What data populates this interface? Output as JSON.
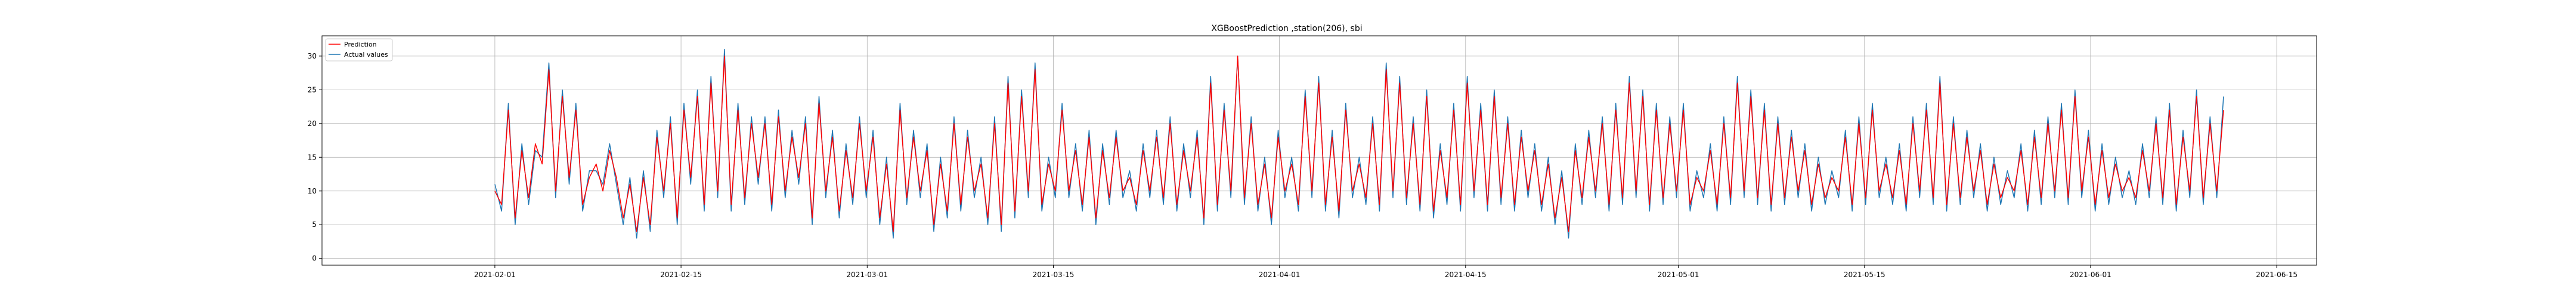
{
  "chart_data": {
    "type": "line",
    "title": "XGBoostPrediction ,station(206), sbi",
    "xlabel": "",
    "ylabel": "",
    "x_range": [
      "2021-01-19",
      "2021-06-18"
    ],
    "ylim": [
      -1,
      33
    ],
    "x_ticks": [
      "2021-02-01",
      "2021-02-15",
      "2021-03-01",
      "2021-03-15",
      "2021-04-01",
      "2021-04-15",
      "2021-05-01",
      "2021-05-15",
      "2021-06-01",
      "2021-06-15"
    ],
    "y_ticks": [
      0,
      5,
      10,
      15,
      20,
      25,
      30
    ],
    "grid": true,
    "legend_position": "upper-left",
    "data_start": "2021-02-01",
    "data_end": "2021-06-11",
    "series": [
      {
        "name": "Prediction",
        "color": "#ff0000",
        "daily_values": [
          10,
          8,
          22,
          6,
          16,
          9,
          17,
          14,
          28,
          10,
          24,
          12,
          22,
          8,
          12,
          14,
          10,
          16,
          12,
          6,
          11,
          4,
          12,
          5,
          18,
          10,
          20,
          6,
          22,
          12,
          24,
          8,
          26,
          10,
          30,
          8,
          22,
          9,
          20,
          12,
          20,
          8,
          21,
          10,
          18,
          12,
          20,
          6,
          23,
          10,
          18,
          7,
          16,
          9,
          20,
          10,
          18,
          6,
          14,
          4,
          22,
          9,
          18,
          10,
          16,
          5,
          14,
          7,
          20,
          8,
          18,
          10,
          14,
          6,
          20,
          5,
          26,
          7,
          24,
          10,
          28,
          8,
          14,
          10,
          22,
          10,
          16,
          8,
          18,
          6,
          16,
          9,
          18,
          10,
          12,
          8,
          16,
          10,
          18,
          9,
          20,
          8,
          16,
          10,
          18,
          6,
          26,
          8,
          22,
          10,
          30,
          9,
          20,
          8,
          14,
          6,
          18,
          10,
          14,
          8,
          24,
          10,
          26,
          8,
          18,
          7,
          22,
          10,
          14,
          9,
          20,
          8,
          28,
          10,
          26,
          9,
          20,
          8,
          24,
          7,
          16,
          9,
          22,
          8,
          26,
          10,
          22,
          8,
          24,
          9,
          20,
          8,
          18,
          10,
          16,
          8,
          14,
          6,
          12,
          4,
          16,
          9,
          18,
          10,
          20,
          8,
          22,
          9,
          26,
          10,
          24,
          8,
          22,
          9,
          20,
          10,
          22,
          8,
          12,
          10,
          16,
          8,
          20,
          9,
          26,
          10,
          24,
          9,
          22,
          8,
          20,
          9,
          18,
          10,
          16,
          8,
          14,
          9,
          12,
          10,
          18,
          8,
          20,
          9,
          22,
          10,
          14,
          9,
          16,
          8,
          20,
          10,
          22,
          9,
          26,
          8,
          20,
          9,
          18,
          10,
          16,
          8,
          14,
          9,
          12,
          10,
          16,
          8,
          18,
          9,
          20,
          10,
          22,
          9,
          24,
          10,
          18,
          8,
          16,
          9,
          14,
          10,
          12,
          9,
          16,
          10,
          20,
          9,
          22,
          8,
          18,
          10,
          24,
          9,
          20,
          10,
          22
        ]
      },
      {
        "name": "Actual values",
        "color": "#1f77b4",
        "daily_values": [
          11,
          7,
          23,
          5,
          17,
          8,
          16,
          15,
          29,
          9,
          25,
          11,
          23,
          7,
          13,
          13,
          11,
          17,
          11,
          5,
          12,
          3,
          13,
          4,
          19,
          9,
          21,
          5,
          23,
          11,
          25,
          7,
          27,
          9,
          31,
          7,
          23,
          8,
          21,
          11,
          21,
          7,
          22,
          9,
          19,
          11,
          21,
          5,
          24,
          9,
          19,
          6,
          17,
          8,
          21,
          9,
          19,
          5,
          15,
          3,
          23,
          8,
          19,
          9,
          17,
          4,
          15,
          6,
          21,
          7,
          19,
          9,
          15,
          5,
          21,
          4,
          27,
          6,
          25,
          9,
          29,
          7,
          15,
          9,
          23,
          9,
          17,
          7,
          19,
          5,
          17,
          8,
          19,
          9,
          13,
          7,
          17,
          9,
          19,
          8,
          21,
          7,
          17,
          9,
          19,
          5,
          27,
          7,
          23,
          9,
          30,
          8,
          21,
          7,
          15,
          5,
          19,
          9,
          15,
          7,
          25,
          9,
          27,
          7,
          19,
          6,
          23,
          9,
          15,
          8,
          21,
          7,
          29,
          9,
          27,
          8,
          21,
          7,
          25,
          6,
          17,
          8,
          23,
          7,
          27,
          9,
          23,
          7,
          25,
          8,
          21,
          7,
          19,
          9,
          17,
          7,
          15,
          5,
          13,
          3,
          17,
          8,
          19,
          9,
          21,
          7,
          23,
          8,
          27,
          9,
          25,
          7,
          23,
          8,
          21,
          9,
          23,
          7,
          13,
          9,
          17,
          7,
          21,
          8,
          27,
          9,
          25,
          8,
          23,
          7,
          21,
          8,
          19,
          9,
          17,
          7,
          15,
          8,
          13,
          9,
          19,
          7,
          21,
          8,
          23,
          9,
          15,
          8,
          17,
          7,
          21,
          9,
          23,
          8,
          27,
          7,
          21,
          8,
          19,
          9,
          17,
          7,
          15,
          8,
          13,
          9,
          17,
          7,
          19,
          8,
          21,
          9,
          23,
          8,
          25,
          9,
          19,
          7,
          17,
          8,
          15,
          9,
          13,
          8,
          17,
          9,
          21,
          8,
          23,
          7,
          19,
          9,
          25,
          8,
          21,
          9,
          24
        ]
      }
    ]
  }
}
